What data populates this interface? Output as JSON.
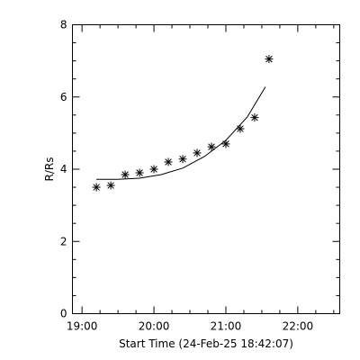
{
  "chart_data": {
    "type": "scatter",
    "title": "",
    "xlabel": "Start Time (24-Feb-25 18:42:07)",
    "ylabel": "R/Rs",
    "xlim": [
      "18:52",
      "22:35"
    ],
    "ylim": [
      0,
      8
    ],
    "x_ticks": [
      "19:00",
      "20:00",
      "21:00",
      "22:00"
    ],
    "y_ticks": [
      0,
      2,
      4,
      6,
      8
    ],
    "grid": false,
    "series": [
      {
        "marker": "asterisk",
        "x": [
          "19:12",
          "19:24",
          "19:36",
          "19:48",
          "20:00",
          "20:12",
          "20:24",
          "20:36",
          "20:48",
          "21:00",
          "21:12",
          "21:24",
          "21:36"
        ],
        "y": [
          3.5,
          3.55,
          3.85,
          3.9,
          4.0,
          4.2,
          4.28,
          4.45,
          4.62,
          4.7,
          5.12,
          5.43,
          7.05
        ]
      },
      {
        "style": "line",
        "x": [
          "19:12",
          "19:30",
          "19:48",
          "20:06",
          "20:24",
          "20:42",
          "21:00",
          "21:18",
          "21:33"
        ],
        "y": [
          3.72,
          3.72,
          3.75,
          3.85,
          4.03,
          4.35,
          4.8,
          5.45,
          6.28
        ]
      }
    ]
  }
}
